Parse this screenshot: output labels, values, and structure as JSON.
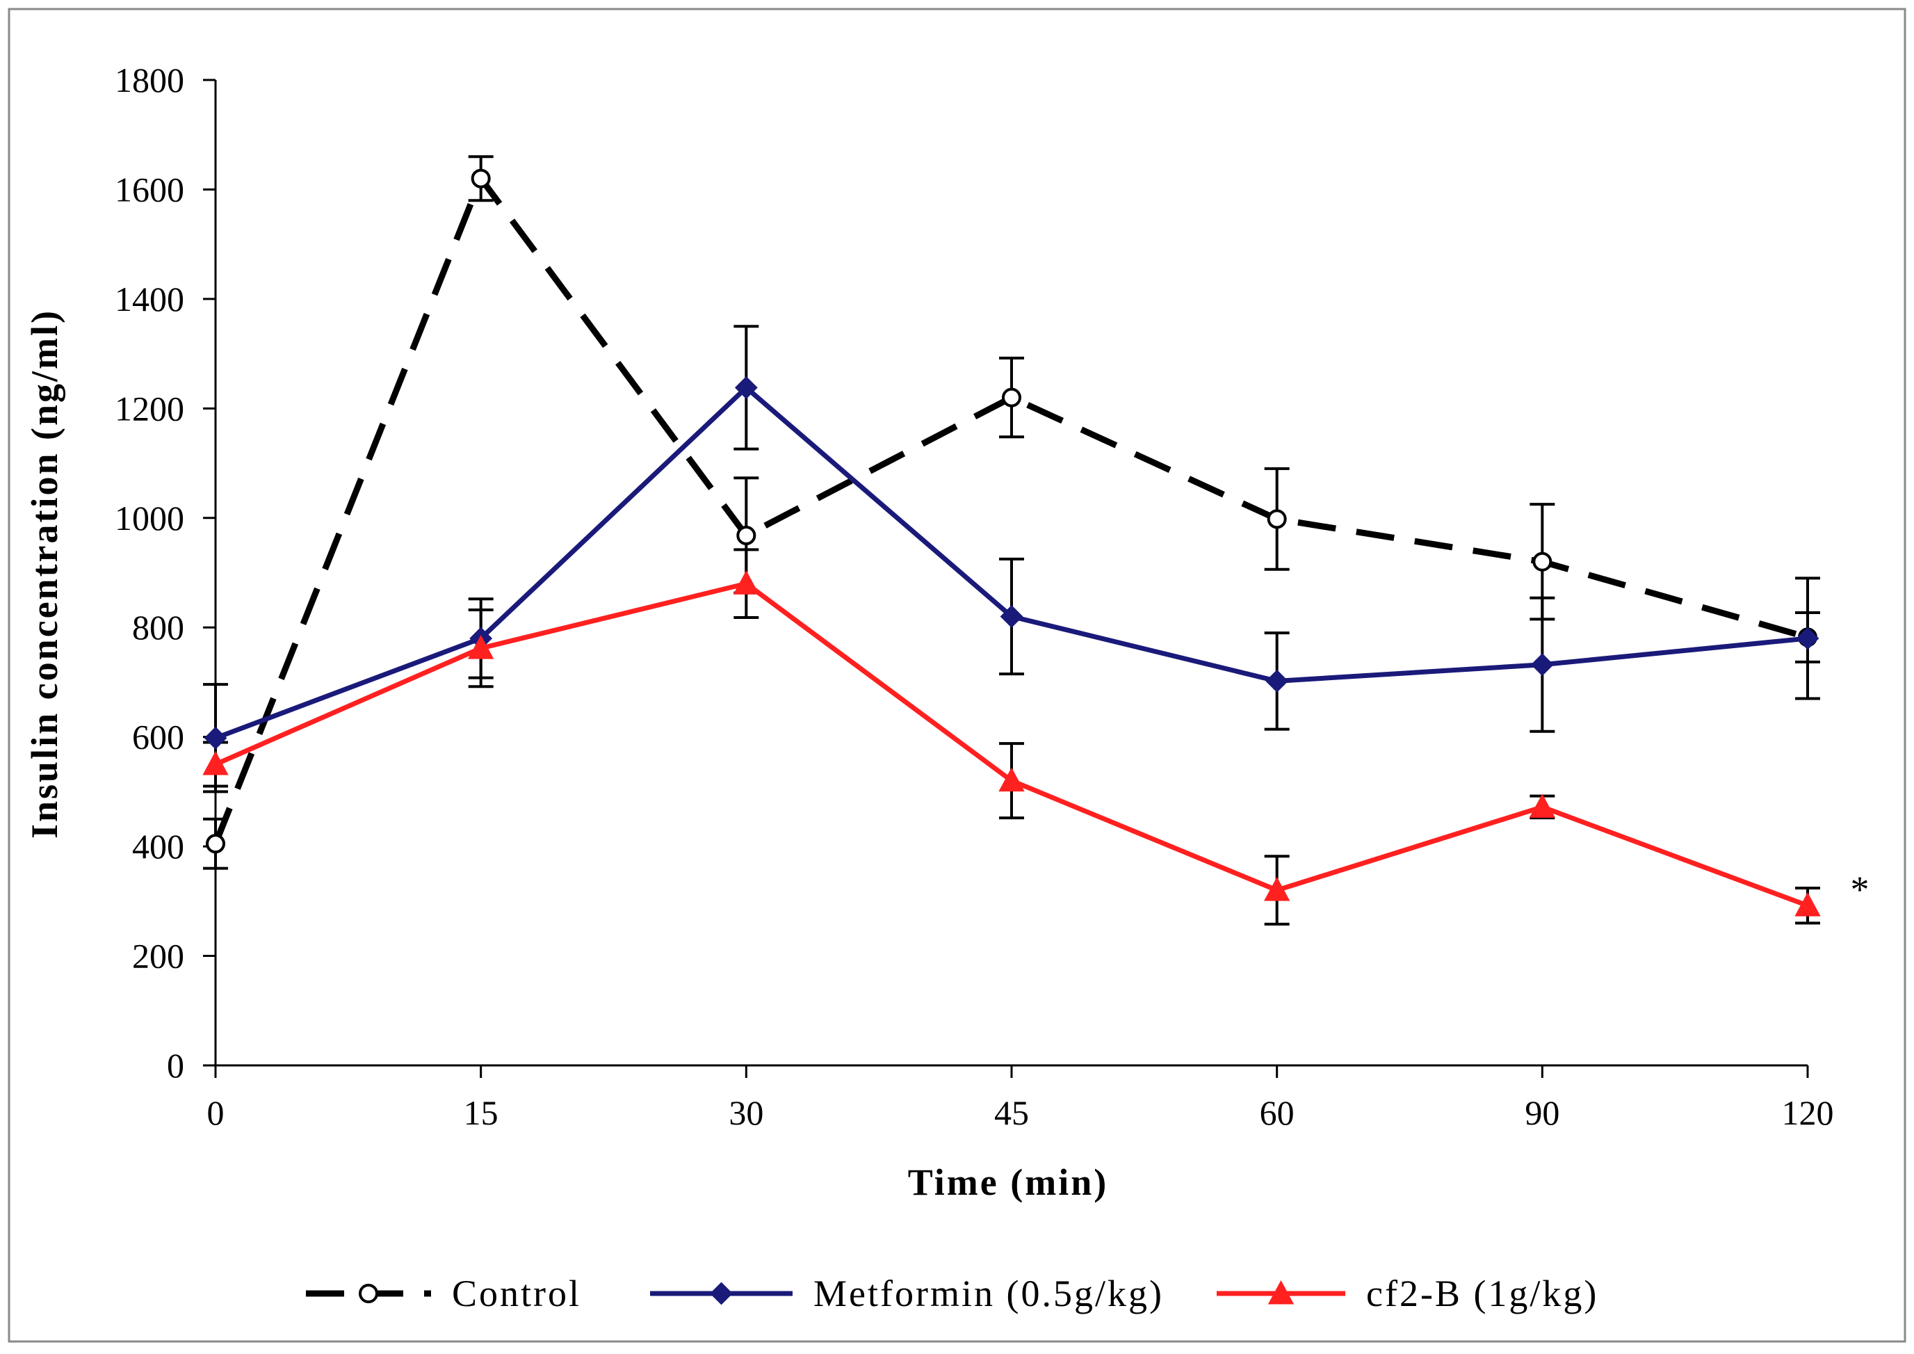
{
  "chart_data": {
    "type": "line",
    "title": "",
    "xlabel": "Time (min)",
    "ylabel": "Insulin concentration (ng/ml)",
    "categories": [
      "0",
      "15",
      "30",
      "45",
      "60",
      "90",
      "120"
    ],
    "ylim": [
      0,
      1800
    ],
    "yticks": [
      "0",
      "200",
      "400",
      "600",
      "800",
      "1000",
      "1200",
      "1400",
      "1600",
      "1800"
    ],
    "grid": false,
    "legend_position": "bottom",
    "series": [
      {
        "name": "Control",
        "color": "#000000",
        "line_style": "dashed",
        "marker": "open-circle",
        "values": [
          405,
          1620,
          968,
          1220,
          998,
          920,
          782
        ],
        "errors": [
          45,
          40,
          105,
          72,
          92,
          105,
          45
        ]
      },
      {
        "name": "Metformin (0.5g/kg)",
        "color": "#1a1a7a",
        "line_style": "solid",
        "marker": "diamond",
        "values": [
          598,
          780,
          1238,
          820,
          702,
          732,
          780
        ],
        "errors": [
          98,
          72,
          112,
          105,
          88,
          122,
          110
        ]
      },
      {
        "name": "cf2-B (1g/kg)",
        "color": "#ff2020",
        "line_style": "solid",
        "marker": "triangle",
        "values": [
          550,
          762,
          880,
          520,
          320,
          472,
          292
        ],
        "errors": [
          40,
          70,
          62,
          68,
          62,
          20,
          32
        ]
      }
    ],
    "annotations": [
      {
        "text": "*",
        "near_category": "120",
        "near_series": "cf2-B (1g/kg)"
      }
    ]
  }
}
